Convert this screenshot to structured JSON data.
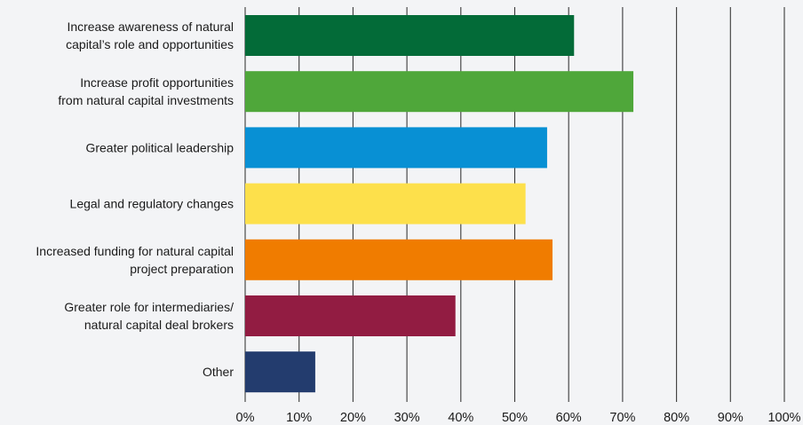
{
  "chart_data": {
    "type": "bar",
    "orientation": "horizontal",
    "categories": [
      [
        "Increase awareness of natural",
        "capital’s role and opportunities"
      ],
      [
        "Increase profit opportunities",
        "from natural capital investments"
      ],
      [
        "Greater political leadership"
      ],
      [
        "Legal and regulatory changes"
      ],
      [
        "Increased funding for natural capital",
        "project preparation"
      ],
      [
        "Greater role for intermediaries/",
        "natural capital deal brokers"
      ],
      [
        "Other"
      ]
    ],
    "values": [
      61,
      72,
      56,
      52,
      57,
      39,
      13
    ],
    "colors": [
      "#036b38",
      "#4fa73a",
      "#0890d4",
      "#fde04b",
      "#f07c00",
      "#921c42",
      "#233c6e"
    ],
    "xlim": [
      0,
      100
    ],
    "xticks": [
      "0%",
      "10%",
      "20%",
      "30%",
      "40%",
      "50%",
      "60%",
      "70%",
      "80%",
      "90%",
      "100%"
    ],
    "grid": true,
    "title": "",
    "xlabel": "",
    "ylabel": ""
  }
}
